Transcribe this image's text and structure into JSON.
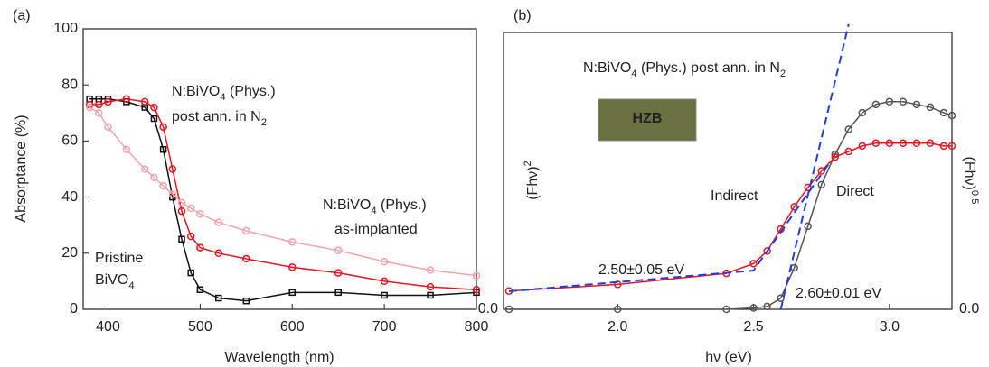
{
  "chart_data": [
    {
      "type": "scatter",
      "panel": "(a)",
      "x_label": "Wavelength (nm)",
      "y_label": "Absorptance (%)",
      "xlim": [
        373,
        800
      ],
      "ylim": [
        0,
        100
      ],
      "xticks": [
        400,
        500,
        600,
        700,
        800
      ],
      "yticks": [
        0,
        20,
        40,
        60,
        80,
        100
      ],
      "x": [
        380,
        390,
        400,
        420,
        440,
        450,
        460,
        470,
        480,
        490,
        500,
        520,
        550,
        600,
        650,
        700,
        750,
        800
      ],
      "series": [
        {
          "name": [
            "Pristine",
            "BiVO4"
          ],
          "color": "#111111",
          "marker": "square",
          "values": [
            75,
            75,
            75,
            74,
            72,
            68,
            57,
            40,
            25,
            13,
            7,
            4,
            3,
            6,
            6,
            5,
            5,
            6
          ]
        },
        {
          "name": [
            "N:BiVO4 (Phys.)",
            "post ann. in N2"
          ],
          "color": "#e8141e",
          "marker": "circle",
          "values": [
            73,
            73,
            74,
            75,
            74,
            72,
            65,
            50,
            35,
            26,
            22,
            20,
            18,
            15,
            13,
            10,
            8,
            7
          ]
        },
        {
          "name": [
            "N:BiVO4 (Phys.)",
            "as-implanted"
          ],
          "color": "#f4a3a8",
          "marker": "circle",
          "values": [
            72,
            70,
            65,
            57,
            50,
            47,
            44,
            41,
            38,
            36,
            34,
            31,
            28,
            24,
            21,
            17,
            14,
            12
          ]
        }
      ]
    },
    {
      "type": "scatter",
      "panel": "(b)",
      "title": "N:BiVO4 (Phys.) post ann. in N2",
      "inset_text": "HZB",
      "x_label": "hν (eV)",
      "y_label": "(Fhν)2",
      "y2_label": "(Fhν)0.5",
      "xlim": [
        1.58,
        3.23
      ],
      "ylim": [
        0,
        1
      ],
      "y2lim": [
        0,
        1
      ],
      "xticks": [
        {
          "value": 2,
          "label": "2.0"
        },
        {
          "value": 2.5,
          "label": "2.5"
        },
        {
          "value": 3,
          "label": "3.0"
        }
      ],
      "yticks": [
        {
          "value": 0,
          "label": "0.0"
        }
      ],
      "y2ticks": [
        {
          "value": 0,
          "label": "0.0"
        }
      ],
      "x": [
        1.6,
        2.0,
        2.4,
        2.5,
        2.55,
        2.6,
        2.65,
        2.7,
        2.75,
        2.8,
        2.85,
        2.9,
        2.95,
        3.0,
        3.05,
        3.1,
        3.15,
        3.2,
        3.23
      ],
      "series": [
        {
          "name": "Direct",
          "color": "#555555",
          "marker": "circle",
          "values": [
            0,
            0,
            0,
            0.005,
            0.01,
            0.04,
            0.15,
            0.3,
            0.45,
            0.56,
            0.65,
            0.71,
            0.74,
            0.75,
            0.75,
            0.74,
            0.73,
            0.71,
            0.7
          ]
        },
        {
          "name": "Indirect",
          "color": "#e8141e",
          "marker": "circle",
          "axis": "y2",
          "values": [
            0.066,
            0.09,
            0.13,
            0.165,
            0.21,
            0.29,
            0.37,
            0.44,
            0.5,
            0.55,
            0.57,
            0.59,
            0.6,
            0.6,
            0.6,
            0.6,
            0.6,
            0.59,
            0.59
          ]
        }
      ],
      "fits": [
        {
          "color": "#1f3fd8",
          "axis": "y2",
          "x": [
            1.6,
            2.5,
            2.78
          ],
          "values": [
            0.065,
            0.14,
            0.53
          ]
        },
        {
          "color": "#1f3fd8",
          "x": [
            2.6,
            2.85
          ],
          "values": [
            0,
            1.03
          ]
        }
      ],
      "annotations": [
        "2.50±0.05 eV",
        "2.60±0.01 eV"
      ]
    }
  ]
}
